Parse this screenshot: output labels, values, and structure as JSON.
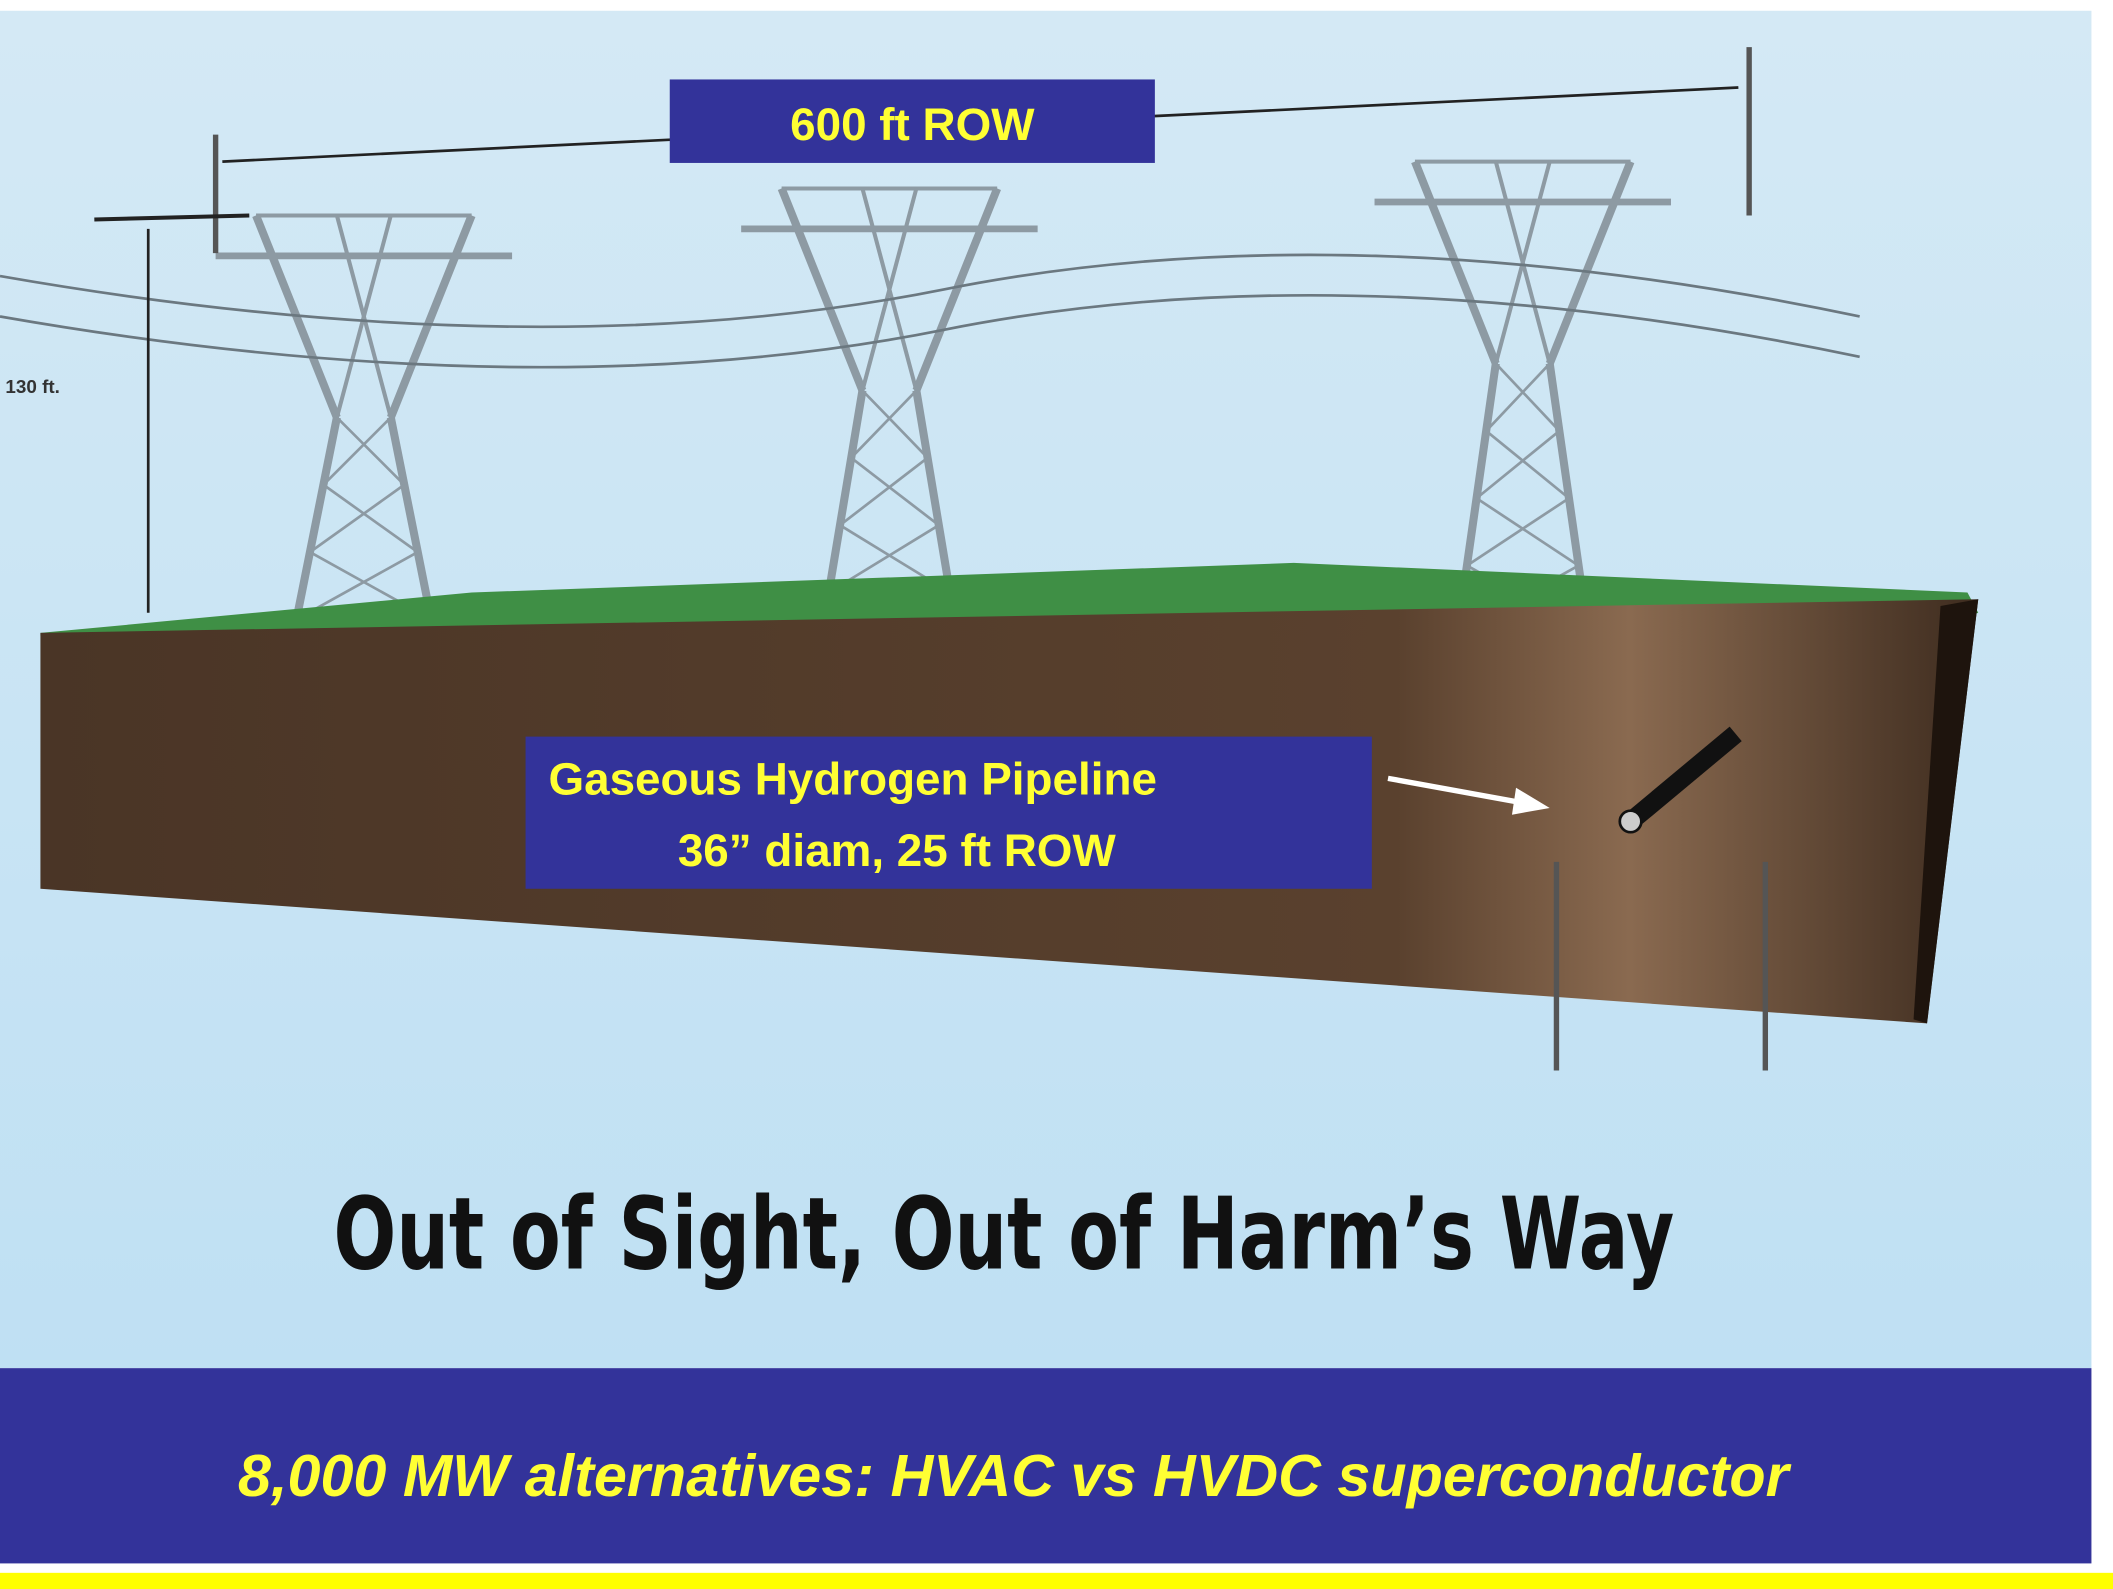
{
  "header_box": {
    "label": "600 ft  ROW"
  },
  "height_label": "130 ft.",
  "pipeline_box": {
    "line1": "Gaseous Hydrogen Pipeline",
    "line2": "36” diam,  25 ft  ROW"
  },
  "caption": "Out of Sight, Out of Harm’s Way",
  "banner": {
    "text": "8,000 MW alternatives:  HVAC vs HVDC superconductor"
  }
}
